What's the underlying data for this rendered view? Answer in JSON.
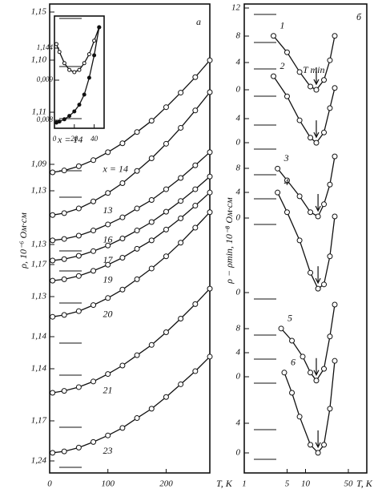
{
  "chart_data": [
    {
      "type": "line",
      "panel": "а",
      "ylabel": "ρ, 10⁻⁶ Ом·см",
      "xlabel": "T, K",
      "xlim": [
        0,
        275
      ],
      "xticks": [
        0,
        100,
        200
      ],
      "ylim": [
        0,
        100
      ],
      "y_labels": [
        "1,15",
        "1,10",
        "1,11",
        "1,09",
        "1,13",
        "1,13",
        "1,17",
        "1,13",
        "1,14",
        "1,14",
        "1,17",
        "1,24"
      ],
      "x": [
        5,
        25,
        50,
        75,
        100,
        125,
        150,
        175,
        200,
        225,
        250,
        275
      ],
      "series": [
        {
          "name": "x = 14",
          "color": "#111",
          "values": [
            64.1,
            64.5,
            65.4,
            66.7,
            68.4,
            70.3,
            72.7,
            75.1,
            78.0,
            81.1,
            84.4,
            88.0
          ]
        },
        {
          "name": "13",
          "color": "#111",
          "values": [
            55.0,
            55.4,
            56.4,
            57.9,
            59.7,
            61.8,
            64.4,
            67.1,
            70.2,
            73.6,
            77.3,
            81.2
          ]
        },
        {
          "name": "16",
          "color": "#111",
          "values": [
            49.6,
            49.9,
            50.6,
            51.7,
            53.0,
            54.5,
            56.4,
            58.2,
            60.5,
            62.9,
            65.6,
            68.4
          ]
        },
        {
          "name": "17",
          "color": "#111",
          "values": [
            45.3,
            45.6,
            46.3,
            47.3,
            48.5,
            50.0,
            51.7,
            53.5,
            55.7,
            58.0,
            60.5,
            63.2
          ]
        },
        {
          "name": "19",
          "color": "#111",
          "values": [
            41.0,
            41.3,
            42.0,
            43.1,
            44.4,
            45.9,
            47.8,
            49.6,
            51.9,
            54.3,
            57.0,
            59.8
          ]
        },
        {
          "name": "20",
          "color": "#111",
          "values": [
            33.3,
            33.7,
            34.5,
            35.8,
            37.3,
            39.1,
            41.3,
            43.6,
            46.2,
            49.1,
            52.3,
            55.6
          ]
        },
        {
          "name": "21",
          "color": "#111",
          "values": [
            17.1,
            17.5,
            18.3,
            19.5,
            21.1,
            22.9,
            25.1,
            27.3,
            30.0,
            32.9,
            36.0,
            39.3
          ]
        },
        {
          "name": "23",
          "color": "#111",
          "values": [
            4.3,
            4.6,
            5.4,
            6.6,
            8.0,
            9.6,
            11.7,
            13.7,
            16.2,
            18.9,
            21.7,
            24.8
          ]
        }
      ]
    },
    {
      "type": "line",
      "xlim": [
        0,
        50
      ],
      "xticks": [
        0,
        20,
        40
      ],
      "ylim": [
        0,
        100
      ],
      "y_labels": [
        "1,144",
        "0,009",
        "0,008"
      ],
      "note": "x = 14",
      "x": [
        2,
        5,
        10,
        15,
        20,
        25,
        30,
        35,
        40,
        45
      ],
      "series": [
        {
          "color": "#111",
          "values": [
            75,
            68,
            58,
            52,
            50,
            52,
            58,
            66,
            78,
            90
          ]
        },
        {
          "color": "#111",
          "values": [
            5,
            6,
            8,
            11,
            15,
            21,
            30,
            45,
            65,
            90
          ]
        }
      ]
    },
    {
      "type": "line",
      "panel": "б",
      "log_x": true,
      "ylabel": "ρ − ρmin, 10⁻⁸ Ом·см",
      "xlabel": "T, K",
      "annotation": "T min",
      "xlim": [
        1,
        100
      ],
      "xticks": [
        1,
        5,
        10,
        50
      ],
      "ylim": [
        0,
        100
      ],
      "y_labels": [
        "12",
        "8",
        "4",
        "0",
        "4",
        "0",
        "8",
        "4",
        "0",
        "0",
        "8",
        "4",
        "0",
        "4",
        "0"
      ],
      "series": [
        {
          "name": "1",
          "color": "#111",
          "x": [
            3,
            5,
            8,
            12,
            15,
            20,
            25,
            30
          ],
          "values": [
            93.2,
            89.7,
            85.5,
            82.4,
            81.7,
            83.8,
            88.0,
            93.2
          ]
        },
        {
          "name": "2",
          "color": "#111",
          "x": [
            3,
            5,
            8,
            12,
            15,
            20,
            25,
            30
          ],
          "values": [
            84.6,
            80.3,
            75.2,
            71.5,
            70.4,
            72.6,
            77.8,
            82.1
          ]
        },
        {
          "name": "3",
          "color": "#111",
          "x": [
            3.5,
            5,
            8,
            12,
            16,
            20,
            25,
            30
          ],
          "values": [
            64.9,
            62.4,
            59.0,
            55.6,
            54.7,
            57.3,
            61.5,
            67.5
          ]
        },
        {
          "name": "4",
          "color": "#111",
          "x": [
            3.5,
            5,
            8,
            12,
            16,
            20,
            25,
            30
          ],
          "values": [
            59.8,
            55.6,
            49.6,
            42.7,
            39.3,
            40.2,
            46.2,
            54.7
          ]
        },
        {
          "name": "5",
          "color": "#111",
          "x": [
            4,
            6,
            9,
            12,
            15,
            20,
            25,
            30
          ],
          "values": [
            30.8,
            28.2,
            24.8,
            21.4,
            19.7,
            22.2,
            29.1,
            35.9
          ]
        },
        {
          "name": "6",
          "color": "#111",
          "x": [
            4.5,
            6,
            8,
            12,
            16,
            20,
            25,
            30
          ],
          "values": [
            21.4,
            17.1,
            12.0,
            6.0,
            4.3,
            6.0,
            13.7,
            23.9
          ]
        }
      ]
    }
  ]
}
